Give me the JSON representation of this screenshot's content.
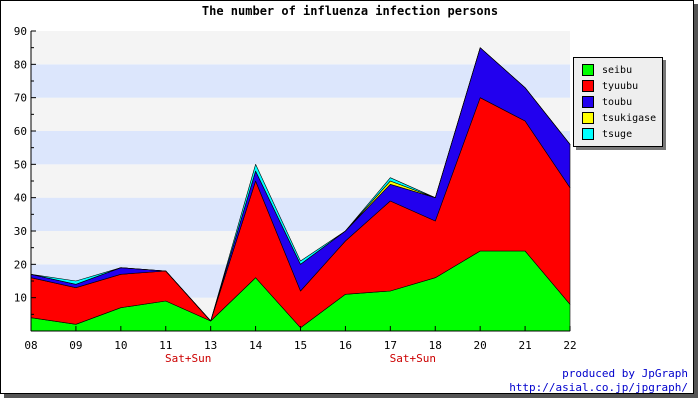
{
  "chart_data": {
    "type": "area",
    "stacked": true,
    "title": "The number of influenza infection persons",
    "categories": [
      "08",
      "09",
      "10",
      "11",
      "13",
      "14",
      "15",
      "16",
      "17",
      "18",
      "20",
      "21",
      "22"
    ],
    "weekend_labels": [
      {
        "after": "11",
        "text": "Sat+Sun"
      },
      {
        "after": "17",
        "text": "Sat+Sun"
      }
    ],
    "ylim": [
      0,
      90
    ],
    "yticks": [
      10,
      20,
      30,
      40,
      50,
      60,
      70,
      80,
      90
    ],
    "band_colors": [
      "#f4f4f4",
      "#dce6fc"
    ],
    "series": [
      {
        "name": "seibu",
        "color": "#00ff00",
        "values": [
          4,
          2,
          7,
          9,
          3,
          16,
          1,
          11,
          12,
          16,
          24,
          24,
          8
        ]
      },
      {
        "name": "tyuubu",
        "color": "#ff0000",
        "values": [
          12,
          11,
          10,
          9,
          0,
          29,
          11,
          16,
          27,
          17,
          46,
          39,
          35
        ]
      },
      {
        "name": "toubu",
        "color": "#2200ee",
        "values": [
          1,
          1,
          2,
          0,
          0,
          3,
          8,
          3,
          5,
          7,
          15,
          10,
          13
        ]
      },
      {
        "name": "tsukigase",
        "color": "#ffff00",
        "values": [
          0,
          0,
          0,
          0,
          0,
          0,
          0,
          0,
          1,
          0,
          0,
          0,
          0
        ]
      },
      {
        "name": "tsuge",
        "color": "#00ffff",
        "values": [
          0,
          1,
          0,
          0,
          0,
          2,
          1,
          0,
          1,
          0,
          0,
          0,
          0
        ]
      }
    ],
    "weekend_label_color": "#cc0000"
  },
  "credit": {
    "line1": "produced by JpGraph",
    "line2": "http://asial.co.jp/jpgraph/"
  }
}
